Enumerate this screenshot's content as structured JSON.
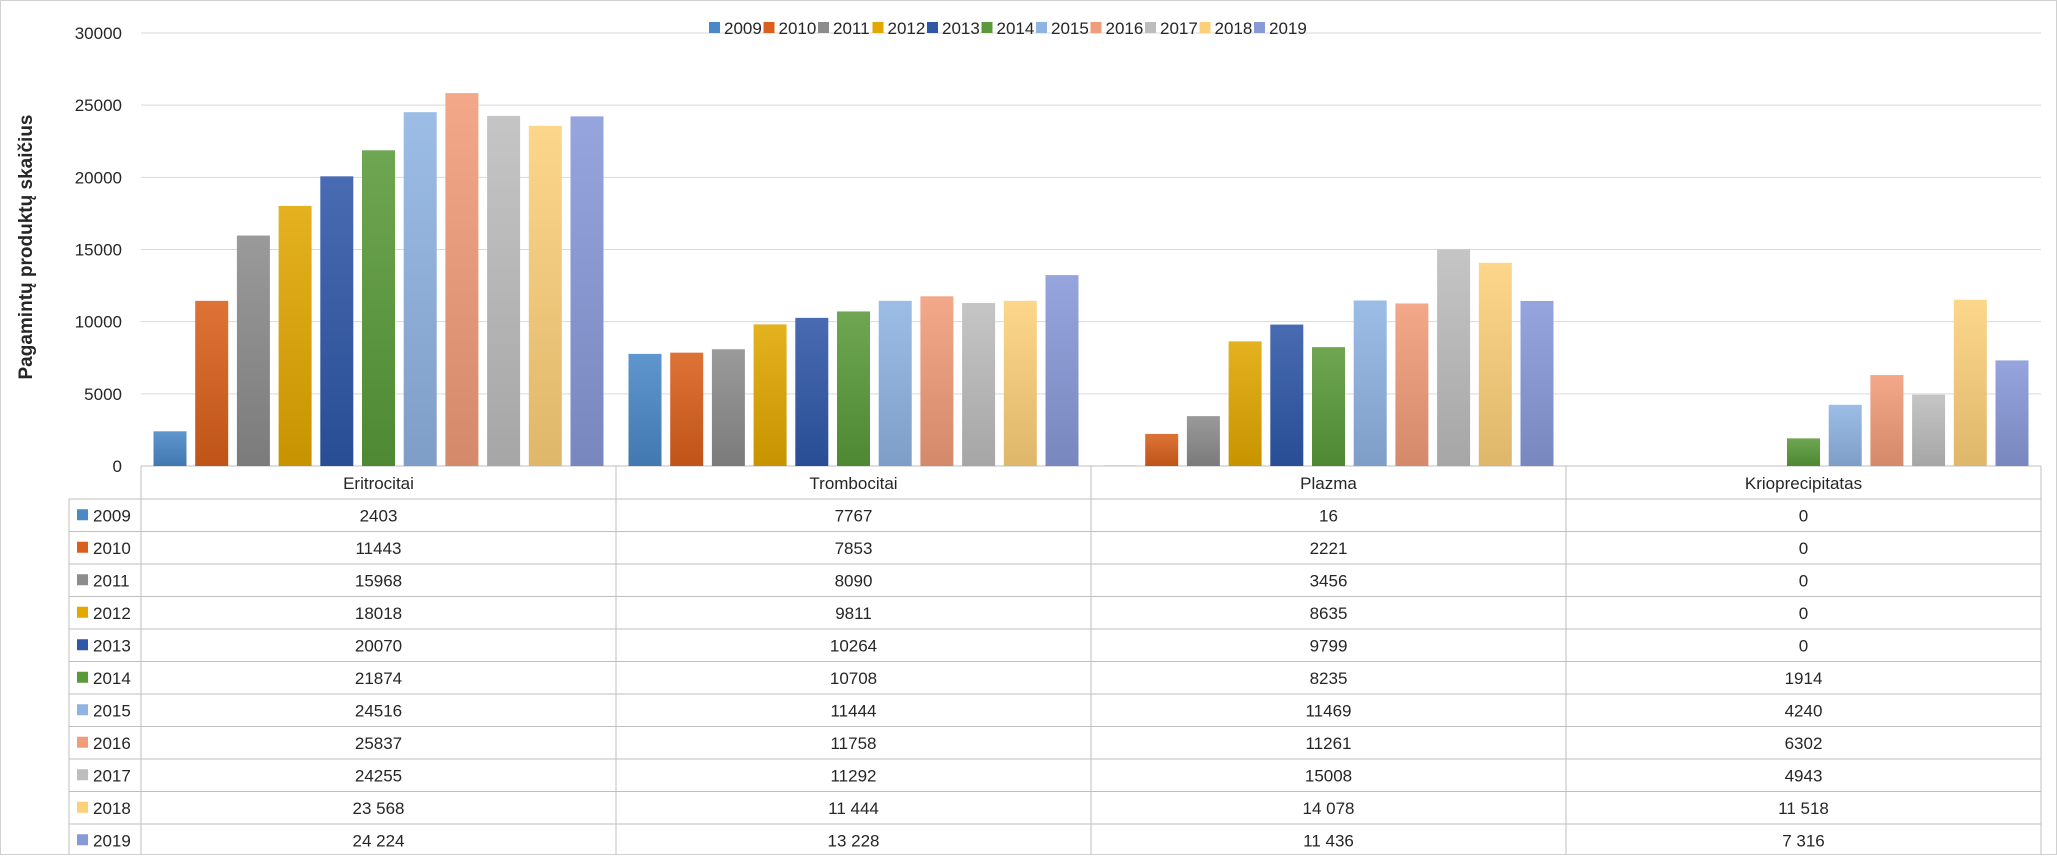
{
  "chart_data": {
    "type": "bar",
    "title": "",
    "xlabel": "",
    "ylabel": "Pagamintų produktų skaičius",
    "ylim": [
      0,
      30000
    ],
    "yticks": [
      "0",
      "5000",
      "10000",
      "15000",
      "20000",
      "25000",
      "30000"
    ],
    "grid": true,
    "legend_position": "top",
    "data_table": true,
    "categories": [
      "Eritrocitai",
      "Trombocitai",
      "Plazma",
      "Krioprecipitatas"
    ],
    "series": [
      {
        "name": "2009",
        "color": "#4a88c7",
        "values": [
          2403,
          7767,
          16,
          0
        ],
        "labels": [
          "2403",
          "7767",
          "16",
          "0"
        ]
      },
      {
        "name": "2010",
        "color": "#d9601c",
        "values": [
          11443,
          7853,
          2221,
          0
        ],
        "labels": [
          "11443",
          "7853",
          "2221",
          "0"
        ]
      },
      {
        "name": "2011",
        "color": "#8c8c8c",
        "values": [
          15968,
          8090,
          3456,
          0
        ],
        "labels": [
          "15968",
          "8090",
          "3456",
          "0"
        ]
      },
      {
        "name": "2012",
        "color": "#e2a800",
        "values": [
          18018,
          9811,
          8635,
          0
        ],
        "labels": [
          "18018",
          "9811",
          "8635",
          "0"
        ]
      },
      {
        "name": "2013",
        "color": "#2f57a8",
        "values": [
          20070,
          10264,
          9799,
          0
        ],
        "labels": [
          "20070",
          "10264",
          "9799",
          "0"
        ]
      },
      {
        "name": "2014",
        "color": "#5a9a3a",
        "values": [
          21874,
          10708,
          8235,
          1914
        ],
        "labels": [
          "21874",
          "10708",
          "8235",
          "1914"
        ]
      },
      {
        "name": "2015",
        "color": "#8fb4e3",
        "values": [
          24516,
          11444,
          11469,
          4240
        ],
        "labels": [
          "24516",
          "11444",
          "11469",
          "4240"
        ]
      },
      {
        "name": "2016",
        "color": "#f19c7a",
        "values": [
          25837,
          11758,
          11261,
          6302
        ],
        "labels": [
          "25837",
          "11758",
          "11261",
          "6302"
        ]
      },
      {
        "name": "2017",
        "color": "#bdbdbd",
        "values": [
          24255,
          11292,
          15008,
          4943
        ],
        "labels": [
          "24255",
          "11292",
          "15008",
          "4943"
        ]
      },
      {
        "name": "2018",
        "color": "#fcd07a",
        "values": [
          23568,
          11444,
          14078,
          11518
        ],
        "labels": [
          "23 568",
          "11 444",
          "14 078",
          "11 518"
        ]
      },
      {
        "name": "2019",
        "color": "#8899d8",
        "values": [
          24224,
          13228,
          11436,
          7316
        ],
        "labels": [
          "24 224",
          "13 228",
          "11 436",
          "7 316"
        ]
      }
    ]
  }
}
